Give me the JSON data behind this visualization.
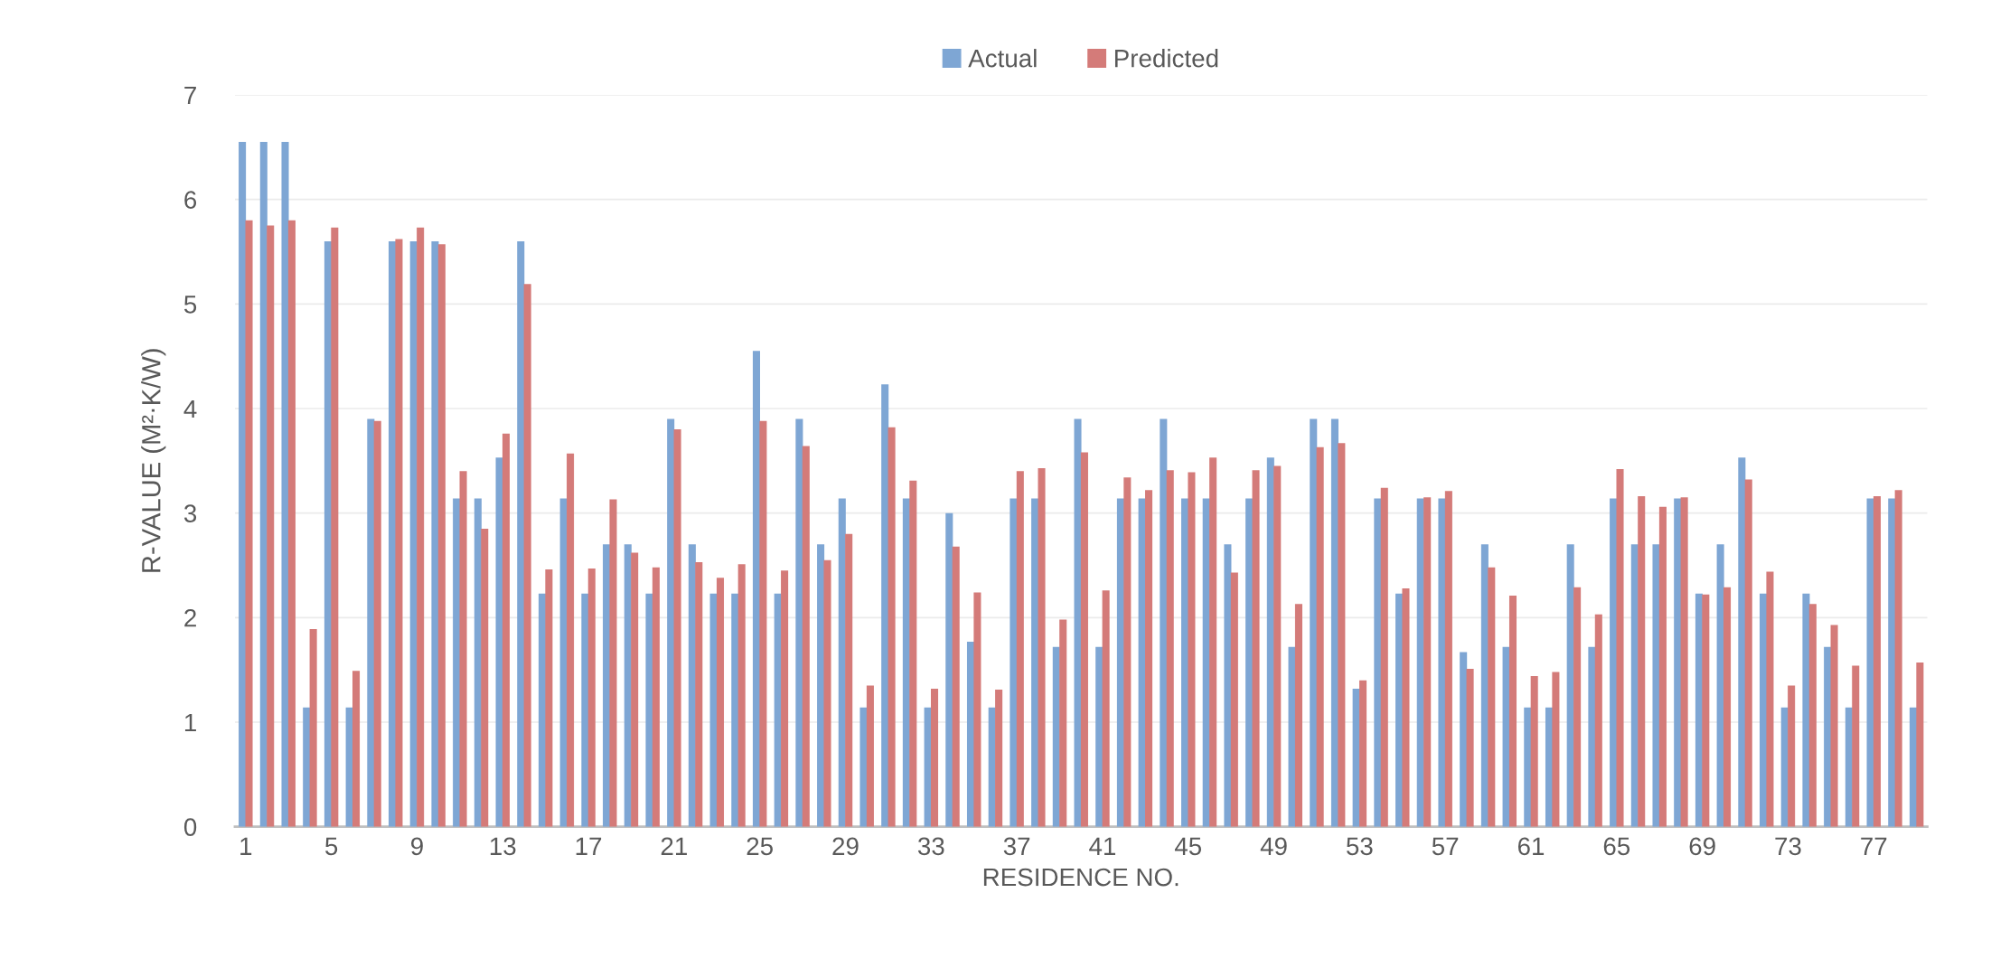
{
  "chart_data": {
    "type": "bar",
    "xlabel": "RESIDENCE NO.",
    "ylabel": "R-VALUE (M²·K/W)",
    "categories": [
      "1",
      null,
      null,
      null,
      "5",
      null,
      null,
      null,
      "9",
      null,
      null,
      null,
      "13",
      null,
      null,
      null,
      "17",
      null,
      null,
      null,
      "21",
      null,
      null,
      null,
      "25",
      null,
      null,
      null,
      "29",
      null,
      null,
      null,
      "33",
      null,
      null,
      null,
      "37",
      null,
      null,
      null,
      "41",
      null,
      null,
      null,
      "45",
      null,
      null,
      null,
      "49",
      null,
      null,
      null,
      "53",
      null,
      null,
      null,
      "57",
      null,
      null,
      null,
      "61",
      null,
      null,
      null,
      "65",
      null,
      null,
      null,
      "69",
      null,
      null,
      null,
      "73",
      null,
      null,
      null,
      "77",
      null,
      null
    ],
    "series": [
      {
        "name": "Actual",
        "color": "#7ea6d4",
        "values": [
          6.55,
          6.55,
          6.55,
          1.14,
          5.6,
          1.14,
          3.9,
          5.6,
          5.6,
          5.6,
          3.14,
          3.14,
          3.53,
          5.6,
          2.23,
          3.14,
          2.23,
          2.7,
          2.7,
          2.23,
          3.9,
          2.7,
          2.23,
          2.23,
          4.55,
          2.23,
          3.9,
          2.7,
          3.14,
          1.14,
          4.23,
          3.14,
          1.14,
          3.0,
          1.77,
          1.14,
          3.14,
          3.14,
          1.72,
          3.9,
          1.72,
          3.14,
          3.14,
          3.9,
          3.14,
          3.14,
          2.7,
          3.14,
          3.53,
          1.72,
          3.9,
          3.9,
          1.32,
          3.14,
          2.23,
          3.14,
          3.14,
          1.67,
          2.7,
          1.72,
          1.14,
          1.14,
          2.7,
          1.72,
          3.14,
          2.7,
          2.7,
          3.14,
          2.23,
          2.7,
          3.53,
          2.23,
          1.14,
          2.23,
          1.72,
          1.14,
          3.14,
          3.14,
          1.14
        ]
      },
      {
        "name": "Predicted",
        "color": "#d47b79",
        "values": [
          5.8,
          5.75,
          5.8,
          1.89,
          5.73,
          1.49,
          3.88,
          5.62,
          5.73,
          5.57,
          3.4,
          2.85,
          3.76,
          5.19,
          2.46,
          3.57,
          2.47,
          3.13,
          2.62,
          2.48,
          3.8,
          2.53,
          2.38,
          2.51,
          3.88,
          2.45,
          3.64,
          2.55,
          2.8,
          1.35,
          3.82,
          3.31,
          1.32,
          2.68,
          2.24,
          1.31,
          3.4,
          3.43,
          1.98,
          3.58,
          2.26,
          3.34,
          3.22,
          3.41,
          3.39,
          3.53,
          2.43,
          3.41,
          3.45,
          2.13,
          3.63,
          3.67,
          1.4,
          3.24,
          2.28,
          3.15,
          3.21,
          1.51,
          2.48,
          2.21,
          1.44,
          1.48,
          2.29,
          2.03,
          3.42,
          3.16,
          3.06,
          3.15,
          2.22,
          2.29,
          3.32,
          2.44,
          1.35,
          2.13,
          1.93,
          1.54,
          3.16,
          3.22,
          1.57
        ]
      }
    ],
    "ylim": [
      0,
      7
    ],
    "yticks": [
      0,
      1,
      2,
      3,
      4,
      5,
      6,
      7
    ],
    "grid": "y",
    "legend": "top"
  }
}
